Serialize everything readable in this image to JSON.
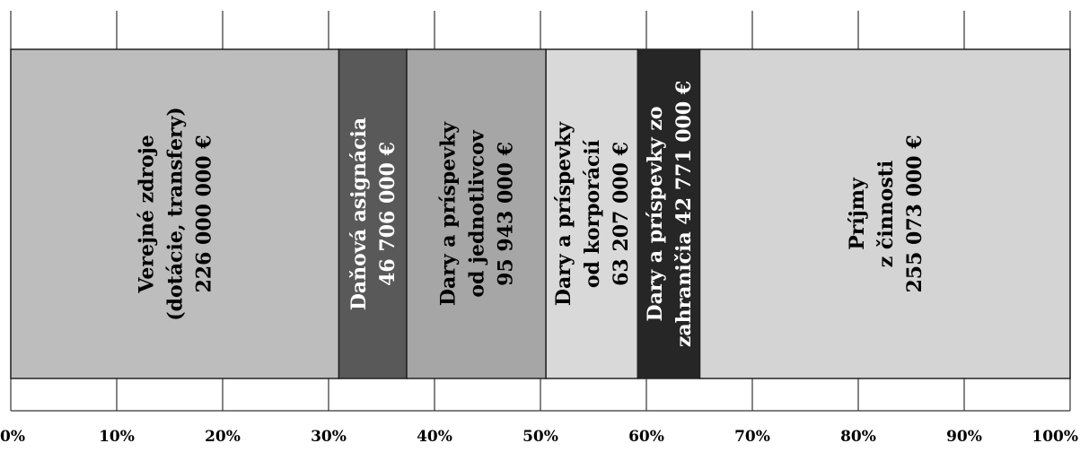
{
  "chart_data": {
    "type": "bar",
    "orientation": "horizontal-stacked-100",
    "title": "",
    "xlabel": "",
    "ylabel": "",
    "xlim": [
      0,
      100
    ],
    "x_ticks": [
      "0%",
      "10%",
      "20%",
      "30%",
      "40%",
      "50%",
      "60%",
      "70%",
      "80%",
      "90%",
      "100%"
    ],
    "grid": true,
    "series": [
      {
        "lines": [
          "Verejné zdroje",
          "(dotácie, transfery)",
          "226 000 000 €"
        ],
        "value": 226000000,
        "color": "#bdbdbd",
        "text_color": "#000000"
      },
      {
        "lines": [
          "Daňová asignácia",
          "46 706 000 €"
        ],
        "value": 46706000,
        "color": "#595959",
        "text_color": "#ffffff"
      },
      {
        "lines": [
          "Dary a príspevky",
          "od jednotlivcov",
          "95 943 000 €"
        ],
        "value": 95943000,
        "color": "#a6a6a6",
        "text_color": "#000000"
      },
      {
        "lines": [
          "Dary a príspevky",
          "od korporácií",
          "63 207 000 €"
        ],
        "value": 63207000,
        "color": "#d9d9d9",
        "text_color": "#000000"
      },
      {
        "lines": [
          "Dary a príspevky zo",
          "zahraničia  42 771 000 €"
        ],
        "value": 42771000,
        "color": "#262626",
        "text_color": "#ffffff"
      },
      {
        "lines": [
          "Príjmy",
          "z činnosti",
          "255 073 000 €"
        ],
        "value": 255073000,
        "color": "#d4d4d4",
        "text_color": "#000000"
      }
    ]
  }
}
